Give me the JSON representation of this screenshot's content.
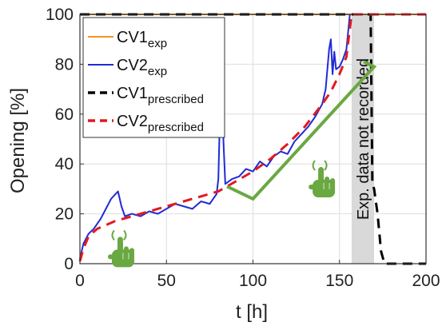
{
  "chart_data": {
    "type": "line",
    "xlabel": "t [h]",
    "ylabel": "Opening [%]",
    "xlim": [
      0,
      200
    ],
    "ylim": [
      0,
      100
    ],
    "xticks": [
      0,
      50,
      100,
      150,
      200
    ],
    "yticks": [
      0,
      20,
      40,
      60,
      80,
      100
    ],
    "grid": true,
    "legend_position": "top-left",
    "shaded_region": {
      "x_start": 157,
      "x_end": 170,
      "label": "Exp. data not recorded",
      "color": "#d9d9d9"
    },
    "series": [
      {
        "name_main": "CV1",
        "name_sub": "exp",
        "color": "#f7941d",
        "style": "solid",
        "x": [
          0,
          157,
          157,
          200
        ],
        "y": [
          100,
          100,
          100,
          100
        ]
      },
      {
        "name_main": "CV2",
        "name_sub": "exp",
        "color": "#1f2bd6",
        "style": "solid",
        "x": [
          0,
          2,
          5,
          8,
          12,
          15,
          18,
          22,
          24,
          26,
          30,
          35,
          40,
          45,
          50,
          55,
          60,
          65,
          70,
          75,
          79,
          80,
          81,
          82,
          83,
          84,
          86,
          88,
          92,
          96,
          100,
          104,
          108,
          112,
          116,
          120,
          124,
          128,
          132,
          136,
          140,
          142,
          144,
          145,
          146,
          147,
          148,
          150,
          152,
          154,
          156
        ],
        "y": [
          2,
          8,
          12,
          14,
          18,
          22,
          26,
          29,
          23,
          19,
          20,
          19,
          21,
          20,
          22,
          24,
          23,
          22,
          25,
          24,
          28,
          34,
          62,
          68,
          48,
          32,
          33,
          34,
          35,
          38,
          37,
          41,
          39,
          43,
          45,
          44,
          49,
          52,
          55,
          59,
          64,
          70,
          86,
          90,
          76,
          85,
          78,
          79,
          82,
          86,
          100
        ]
      },
      {
        "name_main": "CV1",
        "name_sub": "prescribed",
        "color": "#000000",
        "style": "dashed",
        "x": [
          0,
          168,
          169,
          170,
          172,
          174,
          176,
          200
        ],
        "y": [
          100,
          100,
          32,
          30,
          20,
          5,
          0,
          0
        ]
      },
      {
        "name_main": "CV2",
        "name_sub": "prescribed",
        "color": "#e31a1c",
        "style": "dashed",
        "x": [
          0,
          2,
          5,
          10,
          20,
          30,
          40,
          50,
          60,
          70,
          80,
          90,
          100,
          110,
          120,
          130,
          140,
          145,
          150,
          154,
          157,
          160,
          200
        ],
        "y": [
          1,
          6,
          11,
          14,
          17,
          19,
          21,
          23,
          25,
          27,
          29,
          33,
          37,
          42,
          48,
          55,
          64,
          69,
          76,
          83,
          100,
          100,
          100
        ]
      }
    ],
    "annotations": [
      {
        "type": "arrow",
        "color": "#6aa842",
        "points": [
          [
            85,
            31
          ],
          [
            100,
            26
          ],
          [
            170,
            79
          ],
          [
            164,
            81
          ]
        ]
      },
      {
        "type": "hand-pointer-icon",
        "color": "#6aa842",
        "at": [
          24,
          5
        ]
      },
      {
        "type": "hand-pointer-icon",
        "color": "#6aa842",
        "at": [
          140,
          33
        ]
      }
    ]
  }
}
